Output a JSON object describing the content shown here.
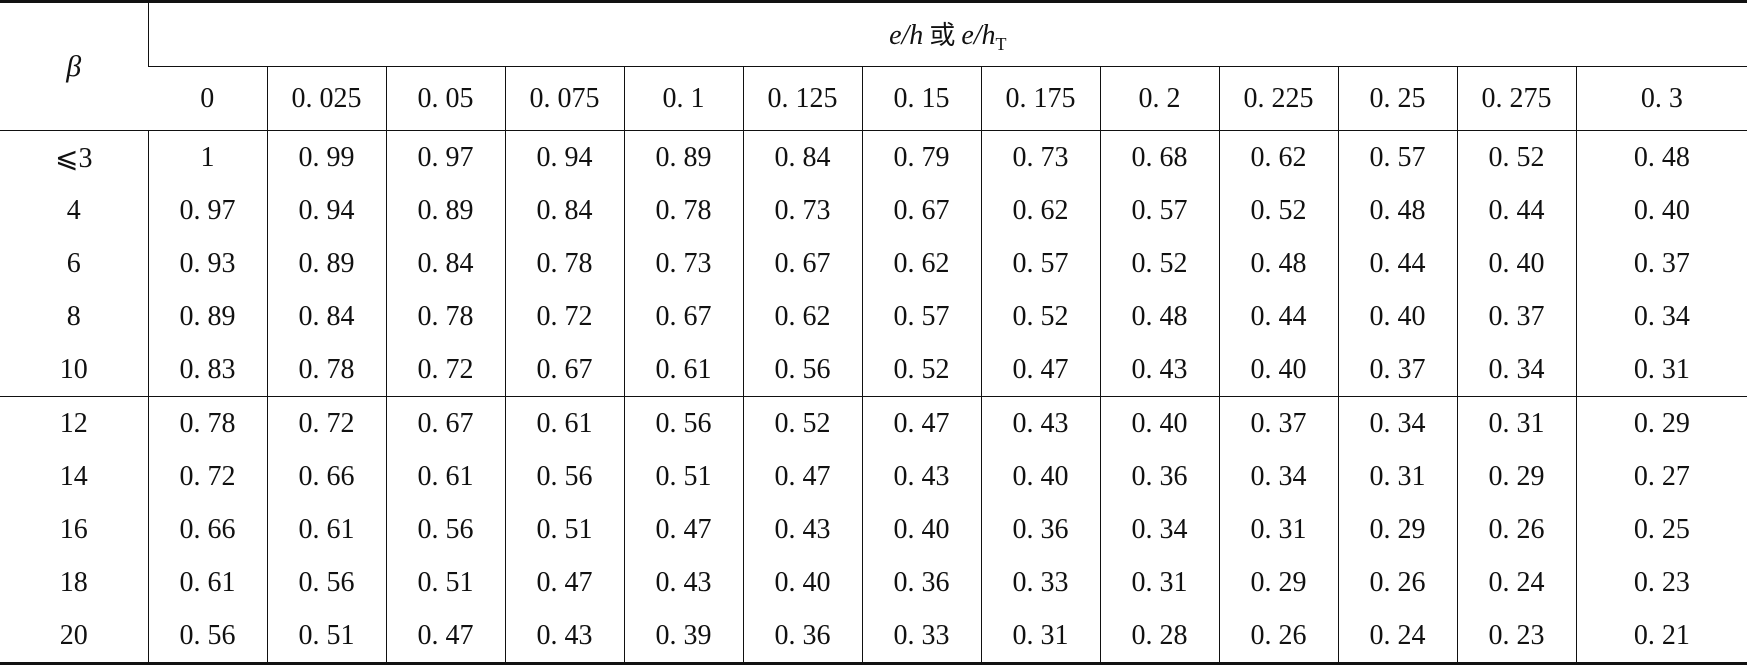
{
  "table": {
    "row_header": "β",
    "group_header": {
      "var1": "e/h",
      "conj": "或",
      "var2": "e/h",
      "sub": "T"
    },
    "columns": [
      "0",
      "0. 025",
      "0. 05",
      "0. 075",
      "0. 1",
      "0. 125",
      "0. 15",
      "0. 175",
      "0. 2",
      "0. 225",
      "0. 25",
      "0. 275",
      "0. 3"
    ],
    "rows": [
      [
        "⩽3",
        "1",
        "0. 99",
        "0. 97",
        "0. 94",
        "0. 89",
        "0. 84",
        "0. 79",
        "0. 73",
        "0. 68",
        "0. 62",
        "0. 57",
        "0. 52",
        "0. 48"
      ],
      [
        "4",
        "0. 97",
        "0. 94",
        "0. 89",
        "0. 84",
        "0. 78",
        "0. 73",
        "0. 67",
        "0. 62",
        "0. 57",
        "0. 52",
        "0. 48",
        "0. 44",
        "0. 40"
      ],
      [
        "6",
        "0. 93",
        "0. 89",
        "0. 84",
        "0. 78",
        "0. 73",
        "0. 67",
        "0. 62",
        "0. 57",
        "0. 52",
        "0. 48",
        "0. 44",
        "0. 40",
        "0. 37"
      ],
      [
        "8",
        "0. 89",
        "0. 84",
        "0. 78",
        "0. 72",
        "0. 67",
        "0. 62",
        "0. 57",
        "0. 52",
        "0. 48",
        "0. 44",
        "0. 40",
        "0. 37",
        "0. 34"
      ],
      [
        "10",
        "0. 83",
        "0. 78",
        "0. 72",
        "0. 67",
        "0. 61",
        "0. 56",
        "0. 52",
        "0. 47",
        "0. 43",
        "0. 40",
        "0. 37",
        "0. 34",
        "0. 31"
      ],
      [
        "12",
        "0. 78",
        "0. 72",
        "0. 67",
        "0. 61",
        "0. 56",
        "0. 52",
        "0. 47",
        "0. 43",
        "0. 40",
        "0. 37",
        "0. 34",
        "0. 31",
        "0. 29"
      ],
      [
        "14",
        "0. 72",
        "0. 66",
        "0. 61",
        "0. 56",
        "0. 51",
        "0. 47",
        "0. 43",
        "0. 40",
        "0. 36",
        "0. 34",
        "0. 31",
        "0. 29",
        "0. 27"
      ],
      [
        "16",
        "0. 66",
        "0. 61",
        "0. 56",
        "0. 51",
        "0. 47",
        "0. 43",
        "0. 40",
        "0. 36",
        "0. 34",
        "0. 31",
        "0. 29",
        "0. 26",
        "0. 25"
      ],
      [
        "18",
        "0. 61",
        "0. 56",
        "0. 51",
        "0. 47",
        "0. 43",
        "0. 40",
        "0. 36",
        "0. 33",
        "0. 31",
        "0. 29",
        "0. 26",
        "0. 24",
        "0. 23"
      ],
      [
        "20",
        "0. 56",
        "0. 51",
        "0. 47",
        "0. 43",
        "0. 39",
        "0. 36",
        "0. 33",
        "0. 31",
        "0. 28",
        "0. 26",
        "0. 24",
        "0. 23",
        "0. 21"
      ]
    ]
  }
}
